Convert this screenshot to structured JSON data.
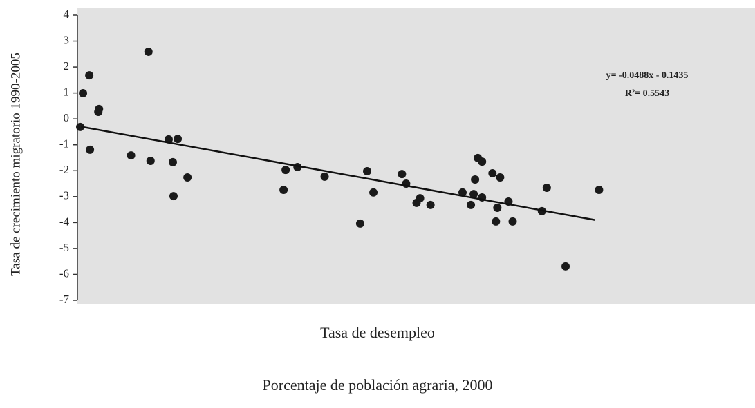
{
  "chart_data": {
    "type": "scatter",
    "ylabel": "Tasa de crecimiento migratorio 1990-2005",
    "xlabel": "Tasa de desempleo",
    "xlabel2": "Porcentaje de población agraria, 2000",
    "annotations": [
      "y= -0.0488x - 0.1435",
      "R²= 0.5543"
    ],
    "xlim": [
      2.7,
      100
    ],
    "ylim": [
      -7,
      4
    ],
    "yticks": [
      -7,
      -6,
      -5,
      -4,
      -3,
      -2,
      -1,
      0,
      1,
      2,
      3,
      4
    ],
    "color": "#1a1a1a",
    "x": [
      3.1,
      3.5,
      4.4,
      4.5,
      5.7,
      5.8,
      10.4,
      12.9,
      13.2,
      15.8,
      17.1,
      16.4,
      16.5,
      18.5,
      32.3,
      32.6,
      34.3,
      38.2,
      43.3,
      44.3,
      45.2,
      49.3,
      49.9,
      51.4,
      51.9,
      53.4,
      58.0,
      59.2,
      59.6,
      59.8,
      60.2,
      60.8,
      60.8,
      62.3,
      63.4,
      63.0,
      62.8,
      64.6,
      65.2,
      69.4,
      70.1,
      72.8,
      77.6
    ],
    "values": [
      -0.31,
      0.99,
      1.68,
      -1.19,
      0.27,
      0.38,
      -1.41,
      2.59,
      -1.62,
      -0.79,
      -0.77,
      -1.67,
      -2.98,
      -2.26,
      -2.74,
      -1.97,
      -1.86,
      -2.23,
      -4.04,
      -2.02,
      -2.84,
      -2.13,
      -2.5,
      -3.24,
      -3.06,
      -3.32,
      -2.84,
      -3.32,
      -2.9,
      -2.34,
      -1.51,
      -1.65,
      -3.03,
      -2.1,
      -2.26,
      -3.43,
      -3.96,
      -3.19,
      -3.96,
      -3.56,
      -2.66,
      -5.69,
      -2.74
    ],
    "trend": {
      "color": "#111111",
      "x": [
        3.2,
        77
      ],
      "values": [
        -0.3,
        -3.9
      ]
    }
  }
}
